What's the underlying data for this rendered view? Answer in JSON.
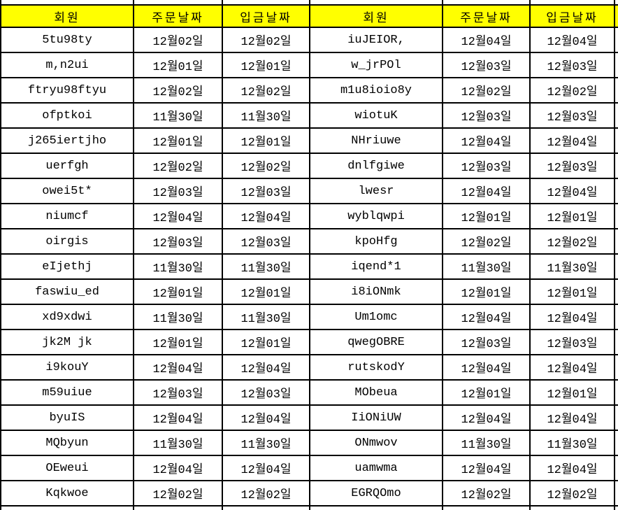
{
  "table": {
    "headers": [
      "회원",
      "주문날짜",
      "입금날짜",
      "회원",
      "주문날짜",
      "입금날짜"
    ],
    "column_kinds": [
      "member",
      "order-date",
      "deposit-date",
      "member",
      "order-date",
      "deposit-date"
    ],
    "rows": [
      [
        "5tu98ty",
        "12월02일",
        "12월02일",
        "iuJEIOR,",
        "12월04일",
        "12월04일"
      ],
      [
        "m,n2ui",
        "12월01일",
        "12월01일",
        "w_jrPOl",
        "12월03일",
        "12월03일"
      ],
      [
        "ftryu98ftyu",
        "12월02일",
        "12월02일",
        "m1u8ioio8y",
        "12월02일",
        "12월02일"
      ],
      [
        "ofptkoi",
        "11월30일",
        "11월30일",
        "wiotuK",
        "12월03일",
        "12월03일"
      ],
      [
        "j265iertjho",
        "12월01일",
        "12월01일",
        "NHriuwe",
        "12월04일",
        "12월04일"
      ],
      [
        "uerfgh",
        "12월02일",
        "12월02일",
        "dnlfgiwe",
        "12월03일",
        "12월03일"
      ],
      [
        "owei5t*",
        "12월03일",
        "12월03일",
        "lwesr",
        "12월04일",
        "12월04일"
      ],
      [
        "niumcf",
        "12월04일",
        "12월04일",
        "wyblqwpi",
        "12월01일",
        "12월01일"
      ],
      [
        "oirgis",
        "12월03일",
        "12월03일",
        "kpoHfg",
        "12월02일",
        "12월02일"
      ],
      [
        "eIjethj",
        "11월30일",
        "11월30일",
        "iqend*1",
        "11월30일",
        "11월30일"
      ],
      [
        "faswiu_ed",
        "12월01일",
        "12월01일",
        "i8iONmk",
        "12월01일",
        "12월01일"
      ],
      [
        "xd9xdwi",
        "11월30일",
        "11월30일",
        "Um1omc",
        "12월04일",
        "12월04일"
      ],
      [
        "jk2M jk",
        "12월01일",
        "12월01일",
        "qwegOBRE",
        "12월03일",
        "12월03일"
      ],
      [
        "i9kouY",
        "12월04일",
        "12월04일",
        "rutskodY",
        "12월04일",
        "12월04일"
      ],
      [
        "m59uiue",
        "12월03일",
        "12월03일",
        "MObeua",
        "12월01일",
        "12월01일"
      ],
      [
        "byuIS",
        "12월04일",
        "12월04일",
        "IiONiUW",
        "12월04일",
        "12월04일"
      ],
      [
        "MQbyun",
        "11월30일",
        "11월30일",
        "ONmwov",
        "11월30일",
        "11월30일"
      ],
      [
        "OEweui",
        "12월04일",
        "12월04일",
        "uamwma",
        "12월04일",
        "12월04일"
      ],
      [
        "Kqkwoe",
        "12월02일",
        "12월02일",
        "EGRQOmo",
        "12월02일",
        "12월02일"
      ]
    ]
  },
  "colors": {
    "header_bg": "#FFFF00",
    "grid": "#000000",
    "cell_bg": "#FFFFFF",
    "text": "#000000"
  }
}
